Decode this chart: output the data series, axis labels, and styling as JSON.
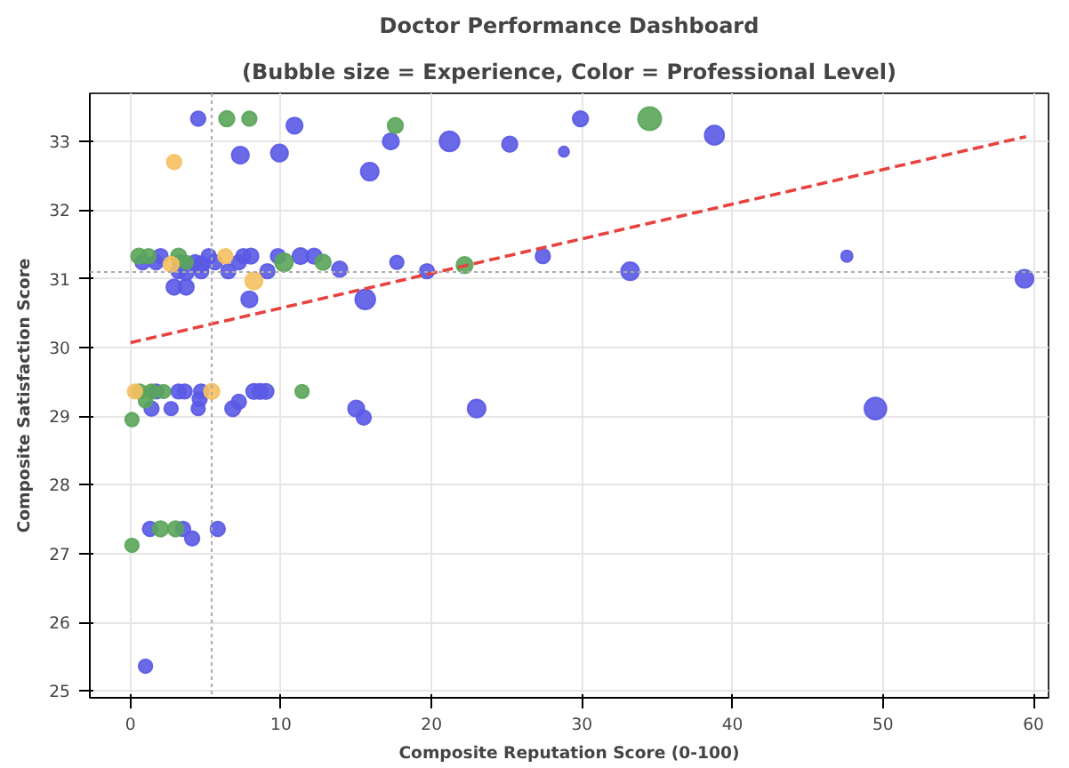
{
  "chart_data": {
    "type": "bubble",
    "title": "Doctor Performance Dashboard",
    "subtitle": "(Bubble size = Experience, Color = Professional Level)",
    "xlabel": "Composite Reputation Score (0-100)",
    "ylabel": "Composite Satisfaction Score",
    "xlim": [
      -2.7,
      61
    ],
    "ylim": [
      24.9,
      33.7
    ],
    "xticks": [
      0,
      10,
      20,
      30,
      40,
      50,
      60
    ],
    "yticks": [
      25,
      26,
      27,
      28,
      29,
      30,
      31,
      32,
      33
    ],
    "grid": true,
    "ref_lines": [
      {
        "axis": "x",
        "value": 5.4,
        "color": "#aaaaaa",
        "line_style": "dotted"
      },
      {
        "axis": "y",
        "value": 31.1,
        "color": "#aaaaaa",
        "line_style": "dotted"
      }
    ],
    "series": [
      {
        "color": "#5a5ae6",
        "x": [
          4.5,
          10.9,
          7.3,
          9.9,
          15.9,
          17.3,
          21.2,
          25.2,
          28.8,
          29.9,
          38.8,
          0.8,
          1.7,
          2.0,
          3.3,
          3.2,
          3.7,
          4.3,
          4.7,
          4.7,
          5.2,
          5.6,
          6.5,
          7.2,
          7.5,
          8.0,
          7.9,
          2.9,
          3.7,
          9.1,
          9.8,
          11.3,
          12.2,
          13.9,
          15.6,
          17.7,
          19.7,
          27.4,
          33.2,
          47.6,
          59.4,
          1.7,
          3.2,
          3.6,
          4.7,
          8.2,
          8.6,
          9.0,
          1.4,
          2.7,
          4.5,
          4.6,
          6.8,
          7.2,
          15.0,
          15.5,
          23.0,
          49.5,
          1.3,
          3.5,
          4.1,
          5.8,
          1.0
        ],
        "values": [
          33.33,
          33.23,
          32.8,
          32.83,
          32.56,
          33.0,
          33.0,
          32.96,
          32.85,
          33.33,
          33.09,
          31.24,
          31.24,
          31.33,
          31.24,
          31.11,
          31.08,
          31.24,
          31.21,
          31.11,
          31.33,
          31.24,
          31.11,
          31.24,
          31.33,
          31.33,
          30.7,
          30.88,
          30.88,
          31.11,
          31.33,
          31.33,
          31.33,
          31.14,
          30.7,
          31.24,
          31.11,
          31.33,
          31.11,
          31.33,
          31.0,
          29.36,
          29.36,
          29.36,
          29.36,
          29.36,
          29.36,
          29.36,
          29.11,
          29.11,
          29.11,
          29.25,
          29.11,
          29.21,
          29.11,
          28.98,
          29.11,
          29.11,
          27.36,
          27.36,
          27.22,
          27.36,
          25.36
        ],
        "sizes": [
          0.4,
          0.5,
          0.55,
          0.55,
          0.6,
          0.5,
          0.75,
          0.45,
          0.2,
          0.45,
          0.7,
          0.4,
          0.4,
          0.4,
          0.4,
          0.4,
          0.4,
          0.4,
          0.5,
          0.4,
          0.4,
          0.4,
          0.4,
          0.4,
          0.4,
          0.45,
          0.5,
          0.45,
          0.45,
          0.4,
          0.4,
          0.5,
          0.45,
          0.45,
          0.75,
          0.35,
          0.4,
          0.4,
          0.6,
          0.25,
          0.6,
          0.4,
          0.4,
          0.4,
          0.4,
          0.45,
          0.45,
          0.45,
          0.4,
          0.35,
          0.35,
          0.4,
          0.45,
          0.4,
          0.5,
          0.4,
          0.6,
          0.9,
          0.4,
          0.4,
          0.4,
          0.4,
          0.35
        ]
      },
      {
        "color": "#5aa55a",
        "x": [
          6.4,
          7.9,
          17.6,
          34.5,
          0.56,
          1.2,
          3.2,
          3.7,
          10.2,
          12.8,
          22.2,
          0.6,
          1.4,
          2.2,
          11.4,
          1.0,
          0.1,
          0.1,
          2.0,
          3.0
        ],
        "values": [
          33.33,
          33.33,
          33.23,
          33.33,
          31.33,
          31.33,
          31.33,
          31.24,
          31.24,
          31.24,
          31.2,
          29.36,
          29.36,
          29.36,
          29.36,
          29.22,
          28.95,
          27.12,
          27.36,
          27.36
        ],
        "sizes": [
          0.45,
          0.4,
          0.45,
          1.0,
          0.45,
          0.4,
          0.45,
          0.35,
          0.6,
          0.45,
          0.5,
          0.4,
          0.4,
          0.35,
          0.35,
          0.35,
          0.35,
          0.35,
          0.45,
          0.45
        ]
      },
      {
        "color": "#f5c060",
        "x": [
          2.9,
          2.7,
          6.3,
          8.2,
          0.3,
          5.4
        ],
        "values": [
          32.7,
          31.21,
          31.33,
          30.97,
          29.36,
          29.36
        ],
        "sizes": [
          0.4,
          0.45,
          0.4,
          0.55,
          0.4,
          0.45
        ]
      },
      {
        "type": "line",
        "color": "#e8423f",
        "line_style": "dashed",
        "x": [
          0,
          59.5
        ],
        "values": [
          30.07,
          33.07
        ]
      }
    ]
  }
}
